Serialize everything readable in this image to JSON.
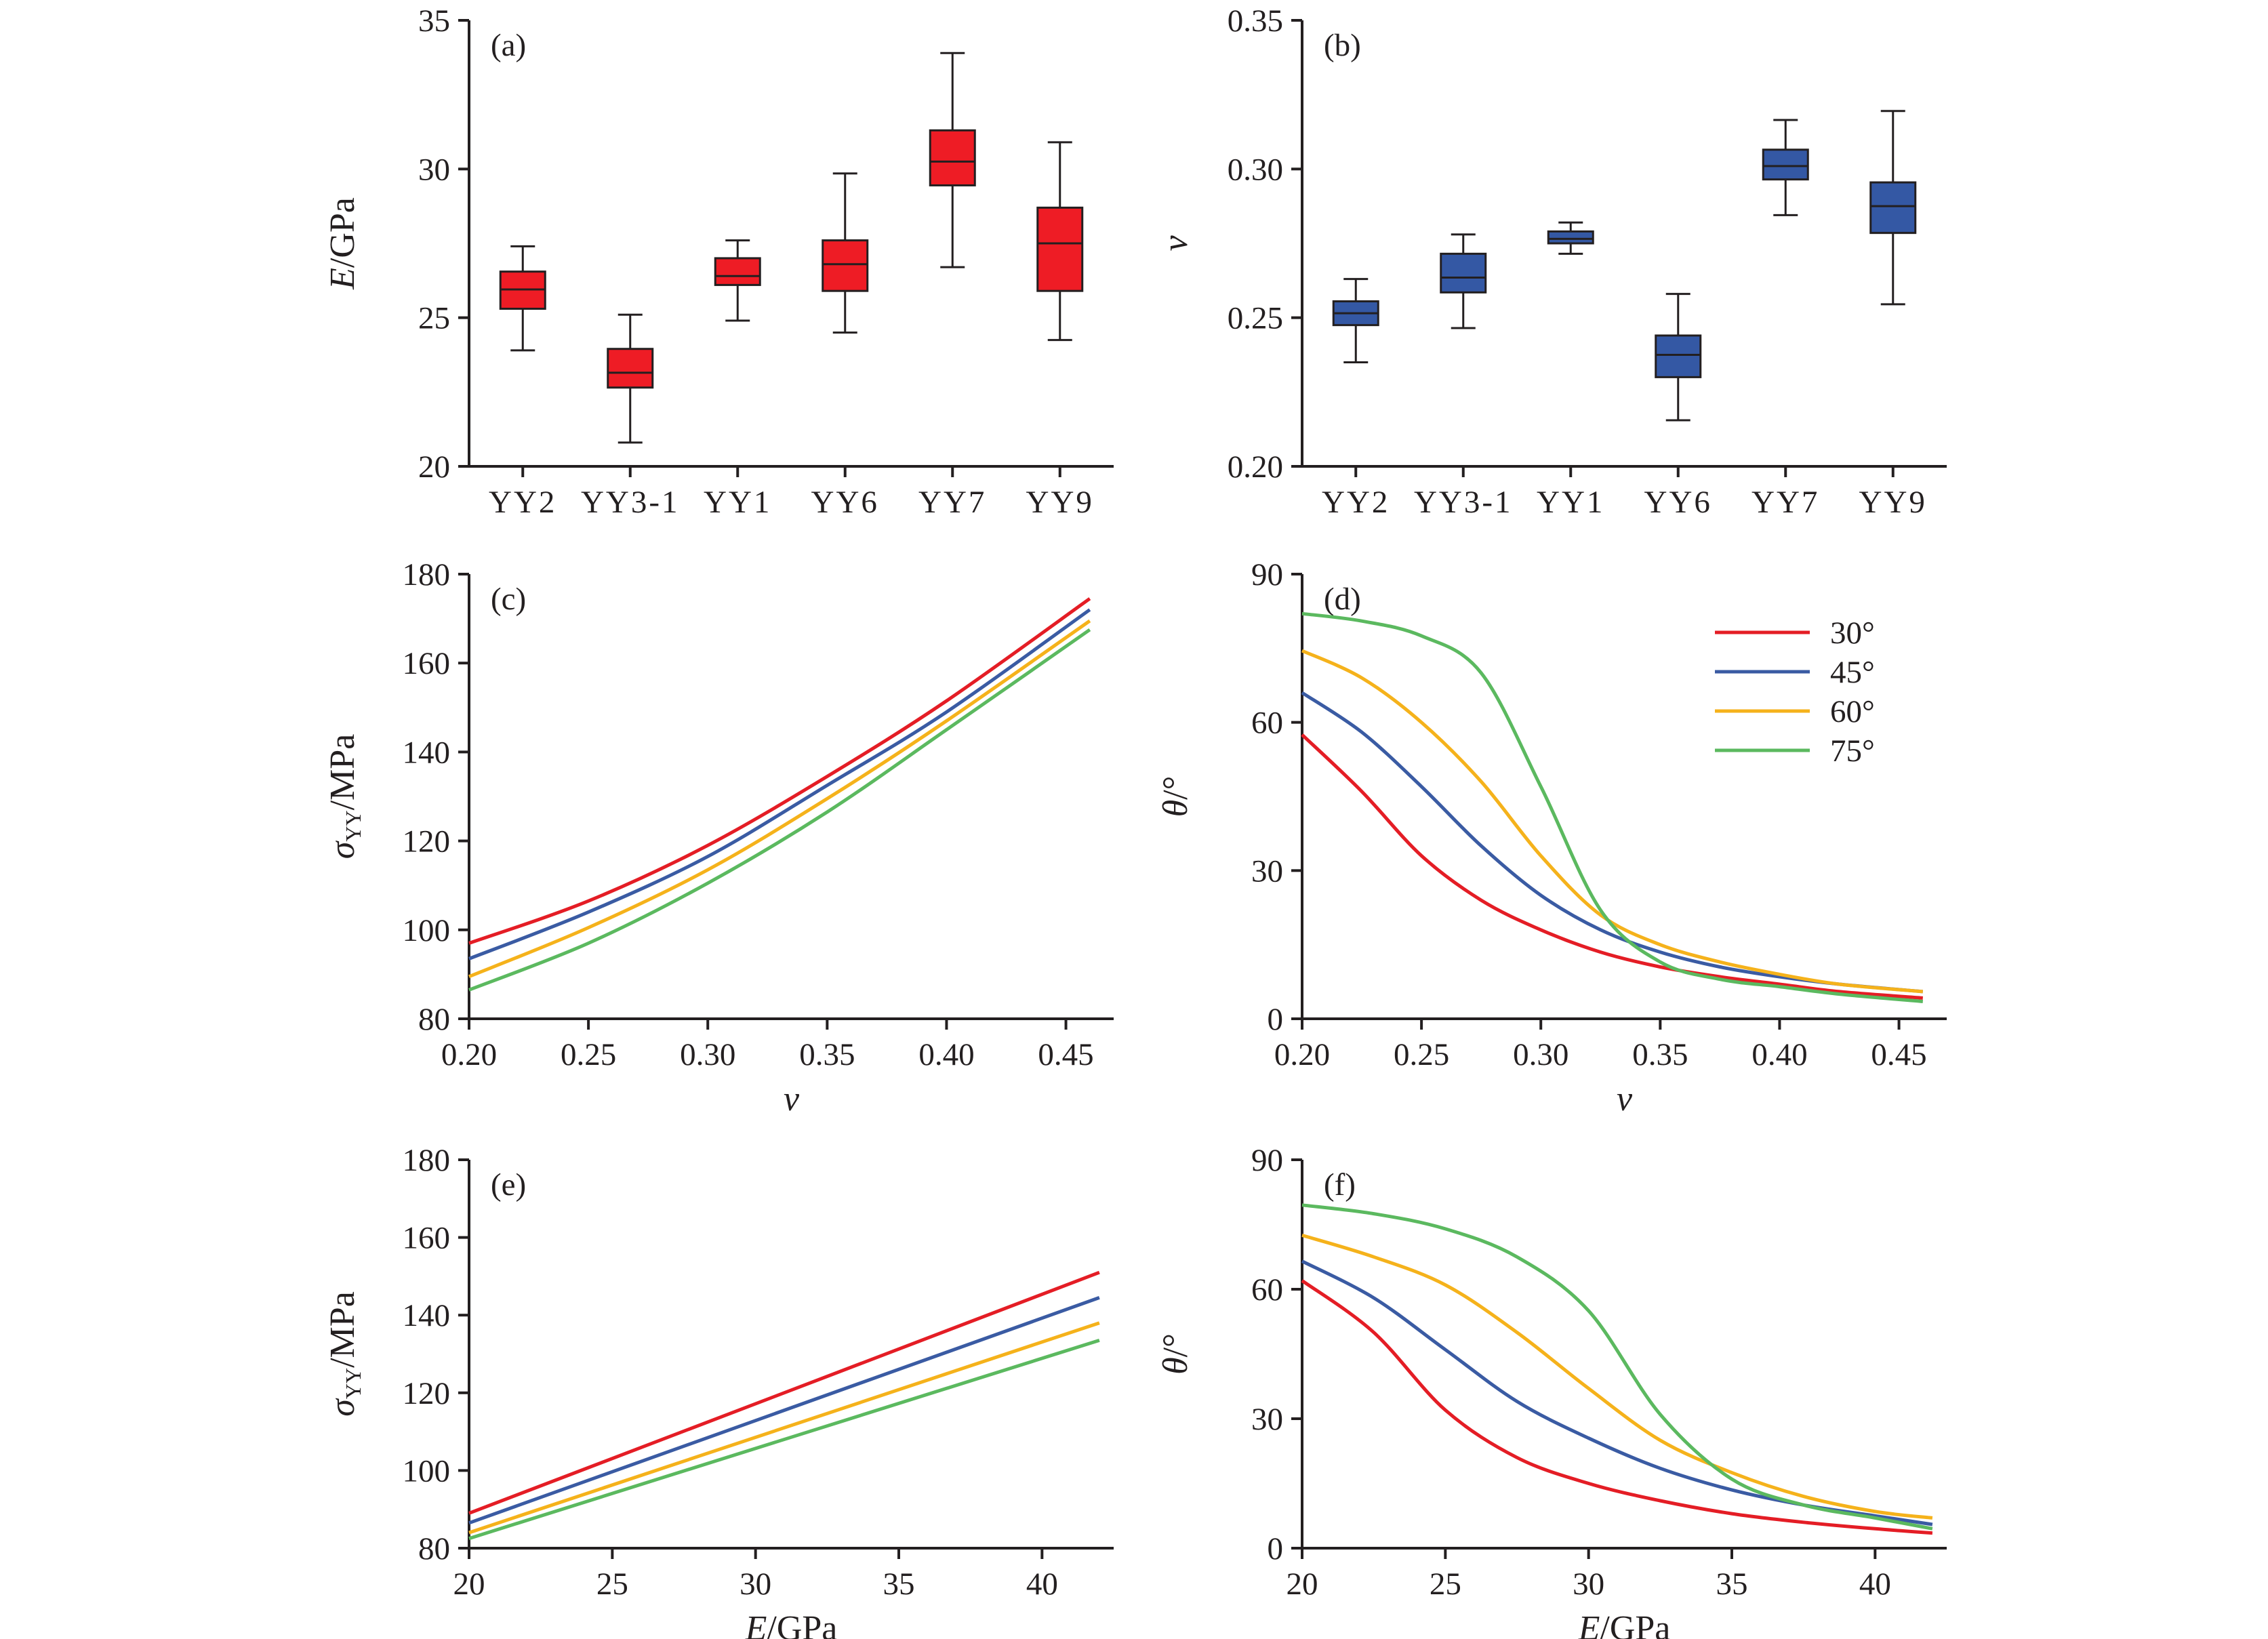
{
  "colors": {
    "axis": "#231f20",
    "box_a_fill": "#ee1c25",
    "box_b_fill": "#3458a4",
    "series": {
      "30°": "#e41d25",
      "45°": "#3a5ba3",
      "60°": "#f5b21b",
      "75°": "#5bb95f"
    }
  },
  "chart_data": [
    {
      "id": "a",
      "panel_label": "(a)",
      "type": "box",
      "categories": [
        "YY2",
        "YY3-1",
        "YY1",
        "YY6",
        "YY7",
        "YY9"
      ],
      "ylabel_var": "E",
      "ylabel_unit": "/GPa",
      "ylim": [
        20,
        35
      ],
      "yticks": [
        "20",
        "25",
        "30",
        "35"
      ],
      "boxes": [
        {
          "min": 23.9,
          "q1": 25.3,
          "median": 25.95,
          "q3": 26.55,
          "max": 27.4
        },
        {
          "min": 20.8,
          "q1": 22.65,
          "median": 23.15,
          "q3": 23.95,
          "max": 25.1
        },
        {
          "min": 24.9,
          "q1": 26.1,
          "median": 26.4,
          "q3": 27.0,
          "max": 27.6
        },
        {
          "min": 24.5,
          "q1": 25.9,
          "median": 26.8,
          "q3": 27.6,
          "max": 29.85
        },
        {
          "min": 26.7,
          "q1": 29.45,
          "median": 30.25,
          "q3": 31.3,
          "max": 33.9
        },
        {
          "min": 24.25,
          "q1": 25.9,
          "median": 27.5,
          "q3": 28.7,
          "max": 30.9
        }
      ]
    },
    {
      "id": "b",
      "panel_label": "(b)",
      "type": "box",
      "categories": [
        "YY2",
        "YY3-1",
        "YY1",
        "YY6",
        "YY7",
        "YY9"
      ],
      "ylabel_var": "v",
      "ylabel_unit": "",
      "ylim": [
        0.2,
        0.35
      ],
      "yticks": [
        "0.20",
        "0.25",
        "0.30",
        "0.35"
      ],
      "boxes": [
        {
          "min": 0.235,
          "q1": 0.2475,
          "median": 0.2515,
          "q3": 0.2555,
          "max": 0.263
        },
        {
          "min": 0.2465,
          "q1": 0.2585,
          "median": 0.2635,
          "q3": 0.2715,
          "max": 0.278
        },
        {
          "min": 0.2715,
          "q1": 0.275,
          "median": 0.2765,
          "q3": 0.279,
          "max": 0.282
        },
        {
          "min": 0.2155,
          "q1": 0.23,
          "median": 0.2375,
          "q3": 0.244,
          "max": 0.258
        },
        {
          "min": 0.2845,
          "q1": 0.2965,
          "median": 0.301,
          "q3": 0.3065,
          "max": 0.3165
        },
        {
          "min": 0.2545,
          "q1": 0.2785,
          "median": 0.2875,
          "q3": 0.2955,
          "max": 0.3195
        }
      ]
    },
    {
      "id": "c",
      "panel_label": "(c)",
      "type": "line",
      "xlabel_var": "v",
      "xlabel_unit": "",
      "ylabel_sym": "σ",
      "ylabel_sub": "YY",
      "ylabel_unit": "/MPa",
      "xlim": [
        0.2,
        0.47
      ],
      "ylim": [
        80,
        180
      ],
      "xticks": [
        "0.20",
        "0.25",
        "0.30",
        "0.35",
        "0.40",
        "0.45"
      ],
      "yticks": [
        "80",
        "100",
        "120",
        "140",
        "160",
        "180"
      ],
      "x": [
        0.2,
        0.25,
        0.3,
        0.35,
        0.4,
        0.46
      ],
      "series": [
        {
          "name": "30°",
          "values": [
            97,
            106.5,
            119,
            134.5,
            151.5,
            174.5
          ]
        },
        {
          "name": "45°",
          "values": [
            93.5,
            104,
            116.5,
            132.5,
            149,
            172
          ]
        },
        {
          "name": "60°",
          "values": [
            89.5,
            100.5,
            113.5,
            129.5,
            147,
            169.5
          ]
        },
        {
          "name": "75°",
          "values": [
            86.5,
            97,
            110.5,
            126.5,
            145,
            167.5
          ]
        }
      ]
    },
    {
      "id": "d",
      "panel_label": "(d)",
      "type": "line",
      "xlabel_var": "v",
      "xlabel_unit": "",
      "ylabel_var": "θ",
      "ylabel_unit": "/°",
      "xlim": [
        0.2,
        0.47
      ],
      "ylim": [
        0,
        90
      ],
      "xticks": [
        "0.20",
        "0.25",
        "0.30",
        "0.35",
        "0.40",
        "0.45"
      ],
      "yticks": [
        "0",
        "30",
        "60",
        "90"
      ],
      "legend": [
        "30°",
        "45°",
        "60°",
        "75°"
      ],
      "x": [
        0.2,
        0.225,
        0.25,
        0.275,
        0.3,
        0.325,
        0.35,
        0.375,
        0.4,
        0.425,
        0.46
      ],
      "series": [
        {
          "name": "30°",
          "values": [
            57.5,
            46,
            33,
            24,
            18,
            13.5,
            10.5,
            8.5,
            7,
            5.5,
            4.2
          ]
        },
        {
          "name": "45°",
          "values": [
            66,
            58,
            47,
            35,
            25,
            18,
            13.5,
            10.5,
            8.5,
            7,
            5.5
          ]
        },
        {
          "name": "60°",
          "values": [
            74.5,
            69,
            60,
            48,
            33,
            21,
            15,
            11.5,
            9,
            7,
            5.5
          ]
        },
        {
          "name": "75°",
          "values": [
            82,
            80.5,
            77.5,
            70,
            47,
            22,
            11.5,
            8,
            6.5,
            5,
            3.5
          ]
        }
      ]
    },
    {
      "id": "e",
      "panel_label": "(e)",
      "type": "line",
      "xlabel_var": "E",
      "xlabel_unit": "/GPa",
      "ylabel_sym": "σ",
      "ylabel_sub": "YY",
      "ylabel_unit": "/MPa",
      "xlim": [
        20,
        42.5
      ],
      "ylim": [
        80,
        180
      ],
      "xticks": [
        "20",
        "25",
        "30",
        "35",
        "40"
      ],
      "yticks": [
        "80",
        "100",
        "120",
        "140",
        "160",
        "180"
      ],
      "x": [
        20,
        42
      ],
      "series": [
        {
          "name": "30°",
          "values": [
            89,
            151
          ]
        },
        {
          "name": "45°",
          "values": [
            86.5,
            144.5
          ]
        },
        {
          "name": "60°",
          "values": [
            84,
            138
          ]
        },
        {
          "name": "75°",
          "values": [
            82.5,
            133.5
          ]
        }
      ]
    },
    {
      "id": "f",
      "panel_label": "(f)",
      "type": "line",
      "xlabel_var": "E",
      "xlabel_unit": "/GPa",
      "ylabel_var": "θ",
      "ylabel_unit": "/°",
      "xlim": [
        20,
        42.5
      ],
      "ylim": [
        0,
        90
      ],
      "xticks": [
        "20",
        "25",
        "30",
        "35",
        "40"
      ],
      "yticks": [
        "0",
        "30",
        "60",
        "90"
      ],
      "x": [
        20,
        22.5,
        25,
        27.5,
        30,
        32.5,
        35,
        37.5,
        40,
        42
      ],
      "series": [
        {
          "name": "30°",
          "values": [
            62,
            50,
            32,
            21,
            15,
            11,
            8,
            6,
            4.5,
            3.5
          ]
        },
        {
          "name": "45°",
          "values": [
            66.5,
            58,
            46,
            34,
            25.5,
            18.5,
            13.5,
            10,
            7.5,
            5.5
          ]
        },
        {
          "name": "60°",
          "values": [
            72.5,
            67.5,
            61,
            50,
            37,
            25,
            17.5,
            12,
            8.5,
            7
          ]
        },
        {
          "name": "75°",
          "values": [
            79.5,
            77.5,
            74,
            67.5,
            55,
            31,
            16,
            10,
            7,
            4.5
          ]
        }
      ]
    }
  ]
}
